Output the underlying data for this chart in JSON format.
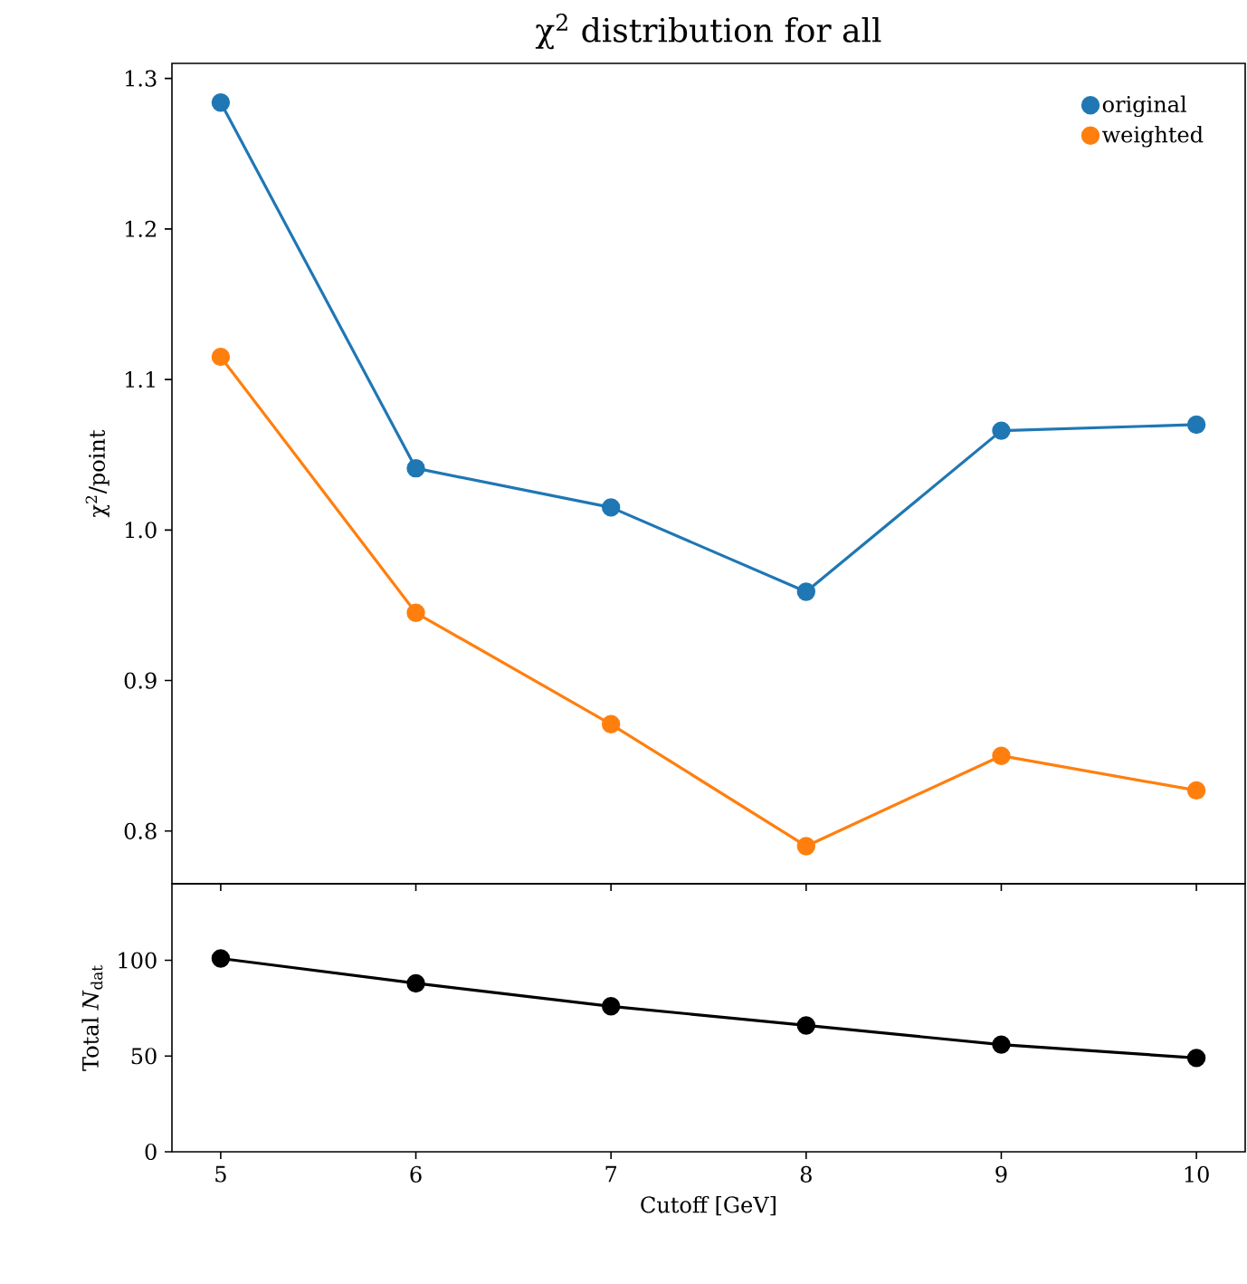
{
  "chart_data": [
    {
      "type": "line",
      "title": "χ$^{2}$ distribution for all",
      "ylabel": "χ$^{2}$/point",
      "x": [
        5,
        6,
        7,
        8,
        9,
        10
      ],
      "xlim": [
        4.75,
        10.25
      ],
      "xticks": [
        5,
        6,
        7,
        8,
        9,
        10
      ],
      "ylim": [
        0.765,
        1.31
      ],
      "yticks": [
        0.8,
        0.9,
        {
          "value": 1.0,
          "label": "1.0"
        },
        1.1,
        1.2,
        1.3
      ],
      "tick_labels": "y",
      "legend": "top right",
      "marker": "circle",
      "grid": false,
      "series": [
        {
          "name": "original",
          "color": "#1f77b4",
          "values": [
            1.284,
            1.041,
            1.015,
            0.959,
            1.066,
            1.07
          ]
        },
        {
          "name": "weighted",
          "color": "#ff7f0e",
          "values": [
            1.115,
            0.945,
            0.871,
            0.79,
            0.85,
            0.827
          ]
        }
      ]
    },
    {
      "type": "line",
      "xlabel": "Cutoff [GeV]",
      "ylabel": "Total *N*$_{dat}$",
      "x": [
        5,
        6,
        7,
        8,
        9,
        10
      ],
      "xlim": [
        4.75,
        10.25
      ],
      "xticks": [
        5,
        6,
        7,
        8,
        9,
        10
      ],
      "ylim": [
        0,
        140
      ],
      "yticks": [
        0,
        50,
        100
      ],
      "marker": "circle",
      "grid": false,
      "series": [
        {
          "color": "#000000",
          "values": [
            101,
            88,
            76,
            66,
            56,
            49
          ]
        }
      ]
    }
  ]
}
